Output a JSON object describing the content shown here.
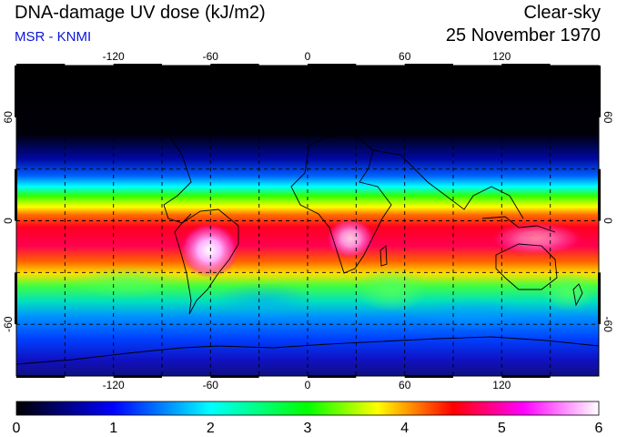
{
  "header": {
    "title": "DNA-damage UV dose (kJ/m2)",
    "source": "MSR - KNMI",
    "condition": "Clear-sky",
    "date": "25 November 1970"
  },
  "map": {
    "projection": "equirectangular",
    "lon_range": [
      -180,
      180
    ],
    "lat_range": [
      -90,
      90
    ],
    "lon_ticks": [
      "-120",
      "-60",
      "0",
      "60",
      "120"
    ],
    "lat_ticks": [
      "60",
      "0",
      "-60"
    ],
    "coastlines": "black",
    "gridlines": "dashed",
    "ocean_fill": "dose-colored"
  },
  "colorbar": {
    "min": 0,
    "max": 6,
    "tick_labels": [
      "0",
      "1",
      "2",
      "3",
      "4",
      "5",
      "6"
    ],
    "colors": [
      "#000000",
      "#0000ff",
      "#00ffff",
      "#00ff00",
      "#ffff00",
      "#ff0000",
      "#ff00ff",
      "#ffffff"
    ]
  }
}
